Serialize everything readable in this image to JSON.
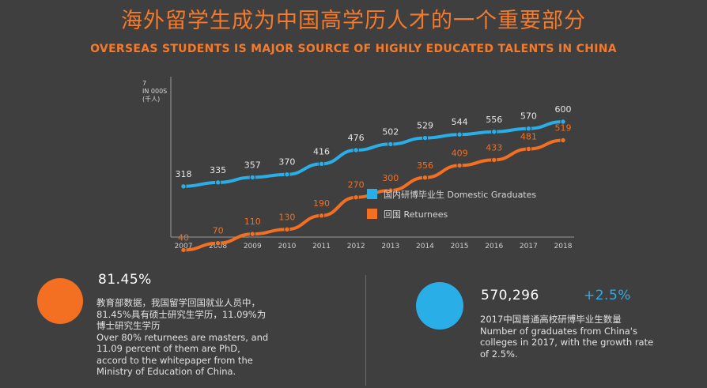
{
  "header": {
    "title_cn": "海外留学生成为中国高学历人才的一个重要部分",
    "title_en": "OVERSEAS STUDENTS IS MAJOR SOURCE OF HIGHLY EDUCATED TALENTS IN CHINA"
  },
  "chart_data": {
    "type": "line",
    "title": "",
    "xlabel": "",
    "ylabel": "IN 000s (千人)",
    "unit_lines": [
      "7",
      "IN 000S",
      "(千人)"
    ],
    "x": [
      "2007",
      "2008",
      "2009",
      "2010",
      "2011",
      "2012",
      "2013",
      "2014",
      "2015",
      "2016",
      "2017",
      "2018"
    ],
    "series": [
      {
        "name": "国内研博毕业生 Domestic Graduates",
        "color": "#29aee8",
        "values": [
          318,
          335,
          357,
          370,
          416,
          476,
          502,
          529,
          544,
          556,
          570,
          600
        ]
      },
      {
        "name": "回国 Returnees",
        "color": "#f36f21",
        "values": [
          40,
          70,
          110,
          130,
          190,
          270,
          300,
          356,
          409,
          433,
          481,
          519
        ]
      }
    ],
    "ylim": [
      0,
      650
    ],
    "legend_position": "center-right"
  },
  "stats": {
    "left": {
      "value": "81.45%",
      "lines": [
        "教育部数据，我国留学回国就业人员中，",
        "81.45%具有硕士研究生学历，11.09%为",
        "博士研究生学历",
        "Over 80% returnees are masters, and",
        "11.09 percent of them are PhD,",
        "accord to the whitepaper from the",
        "Ministry of Education of China."
      ],
      "color": "#f36f21"
    },
    "right": {
      "value": "570,296",
      "growth": "+2.5%",
      "lines": [
        "2017中国普通高校研博毕业生数量",
        "Number of graduates from China's",
        "colleges in 2017, with the growth rate",
        "of 2.5%."
      ],
      "color": "#29aee8"
    }
  }
}
